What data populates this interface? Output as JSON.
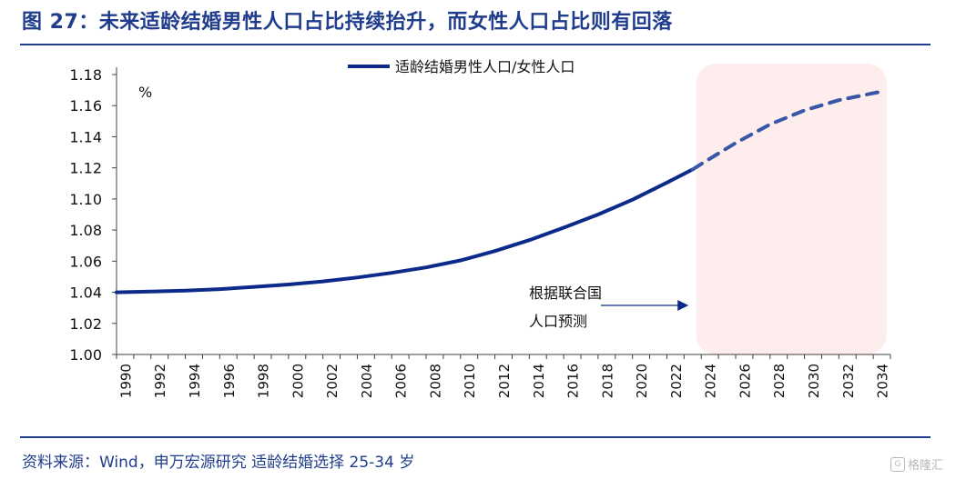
{
  "figure": {
    "title": "图 27：未来适龄结婚男性人口占比持续抬升，而女性人口占比则有回落",
    "source": "资料来源：Wind，申万宏源研究 适龄结婚选择 25-34 岁",
    "watermark": "格隆汇"
  },
  "colors": {
    "title": "#1f3d8c",
    "line_actual": "#0b2a8a",
    "line_forecast": "#3a56a8",
    "forecast_band": "#fdeeed",
    "axis": "#404040"
  },
  "chart_data": {
    "type": "line",
    "unit_label": "%",
    "ylim": [
      1.0,
      1.18
    ],
    "yticks": [
      "1.00",
      "1.02",
      "1.04",
      "1.06",
      "1.08",
      "1.10",
      "1.12",
      "1.14",
      "1.16",
      "1.18"
    ],
    "xlim": [
      1990,
      2035
    ],
    "xticks": [
      "1990",
      "1992",
      "1994",
      "1996",
      "1998",
      "2000",
      "2002",
      "2004",
      "2006",
      "2008",
      "2010",
      "2012",
      "2014",
      "2016",
      "2018",
      "2020",
      "2022",
      "2024",
      "2026",
      "2028",
      "2030",
      "2032",
      "2034"
    ],
    "legend": {
      "label": "适龄结婚男性人口/女性人口",
      "placement": "top-center"
    },
    "series": [
      {
        "name": "适龄结婚男性人口/女性人口",
        "style": "solid",
        "x": [
          1990,
          1992,
          1994,
          1996,
          1998,
          2000,
          2002,
          2004,
          2006,
          2008,
          2010,
          2012,
          2014,
          2016,
          2018,
          2020,
          2022,
          2023.5
        ],
        "y": [
          1.04,
          1.0405,
          1.041,
          1.042,
          1.0435,
          1.045,
          1.047,
          1.0495,
          1.0525,
          1.056,
          1.0605,
          1.0665,
          1.0735,
          1.0815,
          1.09,
          1.0995,
          1.1105,
          1.119
        ]
      },
      {
        "name": "",
        "style": "dashed",
        "x": [
          2023.5,
          2024,
          2026,
          2028,
          2030,
          2032,
          2034,
          2034.5
        ],
        "y": [
          1.119,
          1.1225,
          1.136,
          1.148,
          1.157,
          1.1635,
          1.168,
          1.169
        ]
      }
    ],
    "forecast_region": {
      "x_start": 2023.7,
      "x_end": 2035
    },
    "annotation": {
      "lines": [
        "根据联合国",
        "人口预测"
      ],
      "arrow_to_x": 2024
    }
  }
}
